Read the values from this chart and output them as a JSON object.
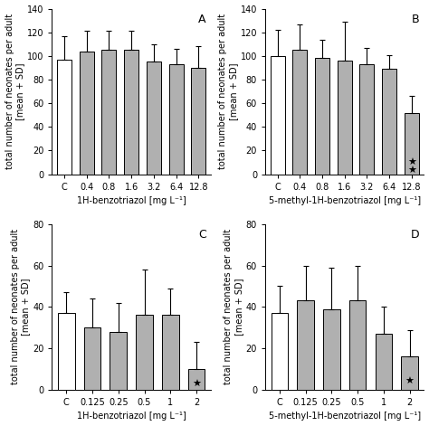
{
  "subplots": [
    {
      "label": "A",
      "xlabel": "1H-benzotriazol [mg L⁻¹]",
      "ylabel": "total number of neonates per adult\n[mean + SD]",
      "categories": [
        "C",
        "0.4",
        "0.8",
        "1.6",
        "3.2",
        "6.4",
        "12.8"
      ],
      "values": [
        97,
        104,
        105,
        105,
        95,
        93,
        90
      ],
      "errors": [
        20,
        17,
        16,
        16,
        15,
        13,
        18
      ],
      "bar_colors": [
        "white",
        "#b0b0b0",
        "#b0b0b0",
        "#b0b0b0",
        "#b0b0b0",
        "#b0b0b0",
        "#b0b0b0"
      ],
      "ylim": [
        0,
        140
      ],
      "yticks": [
        0,
        20,
        40,
        60,
        80,
        100,
        120,
        140
      ],
      "star_text": "",
      "star_bar_idx": -1,
      "num_stars": 0
    },
    {
      "label": "B",
      "xlabel": "5-methyl-1H-benzotriazol [mg L⁻¹]",
      "ylabel": "total number of neonates per adult\n[mean + SD]",
      "categories": [
        "C",
        "0.4",
        "0.8",
        "1.6",
        "3.2",
        "6.4",
        "12.8"
      ],
      "values": [
        100,
        105,
        98,
        96,
        93,
        89,
        52
      ],
      "errors": [
        22,
        22,
        16,
        33,
        14,
        12,
        14
      ],
      "bar_colors": [
        "white",
        "#b0b0b0",
        "#b0b0b0",
        "#b0b0b0",
        "#b0b0b0",
        "#b0b0b0",
        "#b0b0b0"
      ],
      "ylim": [
        0,
        140
      ],
      "yticks": [
        0,
        20,
        40,
        60,
        80,
        100,
        120,
        140
      ],
      "star_text": "★",
      "star_bar_idx": 6,
      "num_stars": 2
    },
    {
      "label": "C",
      "xlabel": "1H-benzotriazol [mg L⁻¹]",
      "ylabel": "total number of neonates per adult\n[mean + SD]",
      "categories": [
        "C",
        "0.125",
        "0.25",
        "0.5",
        "1",
        "2"
      ],
      "values": [
        37,
        30,
        28,
        36,
        36,
        10
      ],
      "errors": [
        10,
        14,
        14,
        22,
        13,
        13
      ],
      "bar_colors": [
        "white",
        "#b0b0b0",
        "#b0b0b0",
        "#b0b0b0",
        "#b0b0b0",
        "#b0b0b0"
      ],
      "ylim": [
        0,
        80
      ],
      "yticks": [
        0,
        20,
        40,
        60,
        80
      ],
      "star_text": "★",
      "star_bar_idx": 5,
      "num_stars": 1
    },
    {
      "label": "D",
      "xlabel": "5-methyl-1H-benzotriazol [mg L⁻¹]",
      "ylabel": "total number of neonates per adult\n[mean + SD]",
      "categories": [
        "C",
        "0.125",
        "0.25",
        "0.5",
        "1",
        "2"
      ],
      "values": [
        37,
        43,
        39,
        43,
        27,
        16
      ],
      "errors": [
        13,
        17,
        20,
        17,
        13,
        13
      ],
      "bar_colors": [
        "white",
        "#b0b0b0",
        "#b0b0b0",
        "#b0b0b0",
        "#b0b0b0",
        "#b0b0b0"
      ],
      "ylim": [
        0,
        80
      ],
      "yticks": [
        0,
        20,
        40,
        60,
        80
      ],
      "star_text": "★",
      "star_bar_idx": 5,
      "num_stars": 1
    }
  ],
  "figure_bg": "white",
  "bar_edge_color": "black",
  "bar_width": 0.65,
  "tick_fontsize": 7,
  "label_fontsize": 7,
  "panel_label_fontsize": 9
}
